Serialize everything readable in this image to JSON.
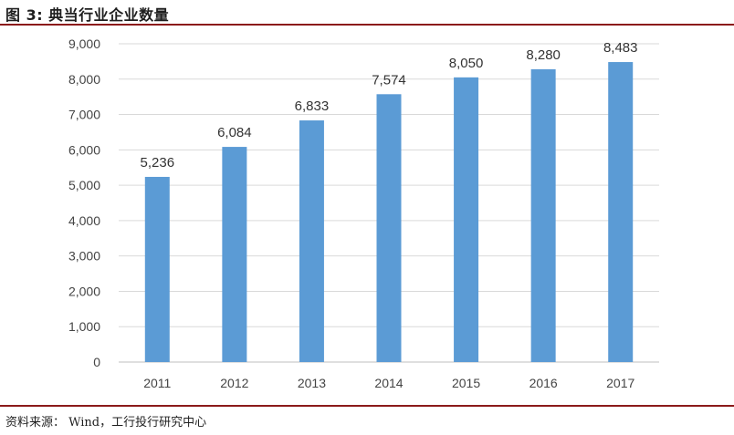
{
  "header": {
    "title": "图 3: 典当行业企业数量"
  },
  "footer": {
    "source": "资料来源： Wind，工行投行研究中心"
  },
  "colors": {
    "bar": "#5b9bd5",
    "grid": "#d9d9d9",
    "rule": "#8b1a1a"
  },
  "chart_data": {
    "type": "bar",
    "title": "",
    "xlabel": "",
    "ylabel": "",
    "categories": [
      "2011",
      "2012",
      "2013",
      "2014",
      "2015",
      "2016",
      "2017"
    ],
    "values": [
      5236,
      6084,
      6833,
      7574,
      8050,
      8280,
      8483
    ],
    "value_labels": [
      "5,236",
      "6,084",
      "6,833",
      "7,574",
      "8,050",
      "8,280",
      "8,483"
    ],
    "ylim": [
      0,
      9000
    ],
    "yticks": [
      0,
      1000,
      2000,
      3000,
      4000,
      5000,
      6000,
      7000,
      8000,
      9000
    ],
    "ytick_labels": [
      "0",
      "1,000",
      "2,000",
      "3,000",
      "4,000",
      "5,000",
      "6,000",
      "7,000",
      "8,000",
      "9,000"
    ],
    "grid": true,
    "legend": "none"
  }
}
